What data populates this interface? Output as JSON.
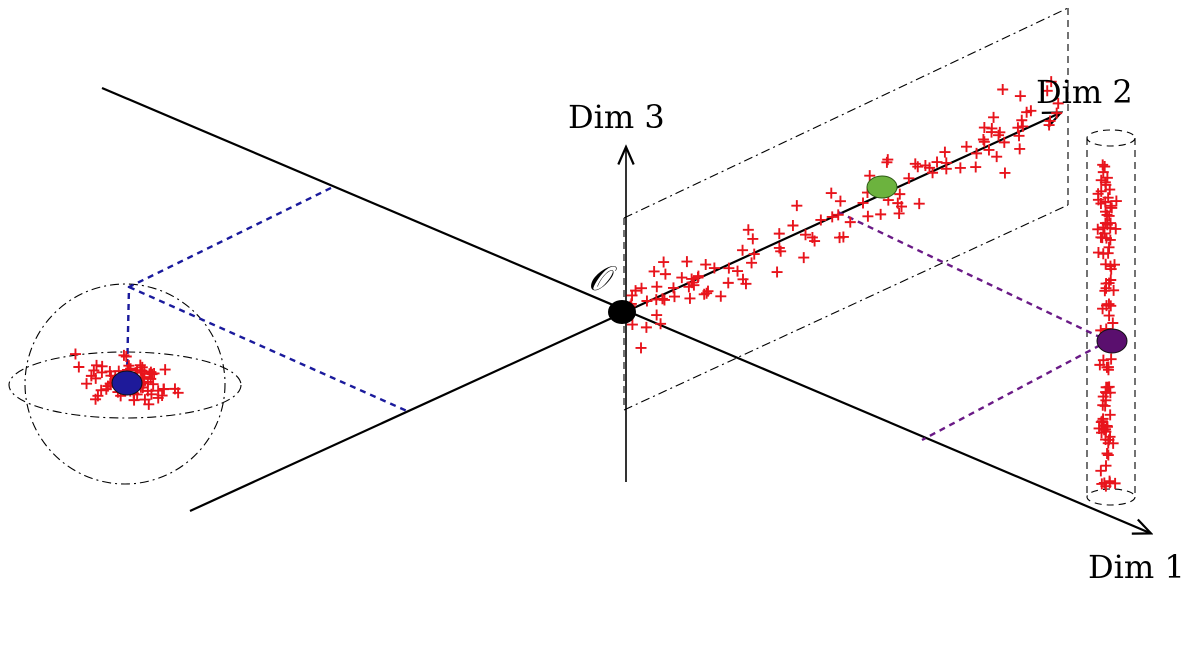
{
  "labels": {
    "dim1": "Dim 1",
    "dim2": "Dim 2",
    "dim3": "Dim 3",
    "origin": "𝒪"
  },
  "colors": {
    "points": "#e8141c",
    "centroid_sphere": "#1e1a9a",
    "centroid_line": "#6cb33e",
    "centroid_cylinder": "#5a0f6e",
    "origin": "#000000"
  },
  "clusters": [
    {
      "name": "sphere-cluster",
      "count": 80
    },
    {
      "name": "line-cluster",
      "count": 120
    },
    {
      "name": "cylinder-cluster",
      "count": 100
    }
  ]
}
